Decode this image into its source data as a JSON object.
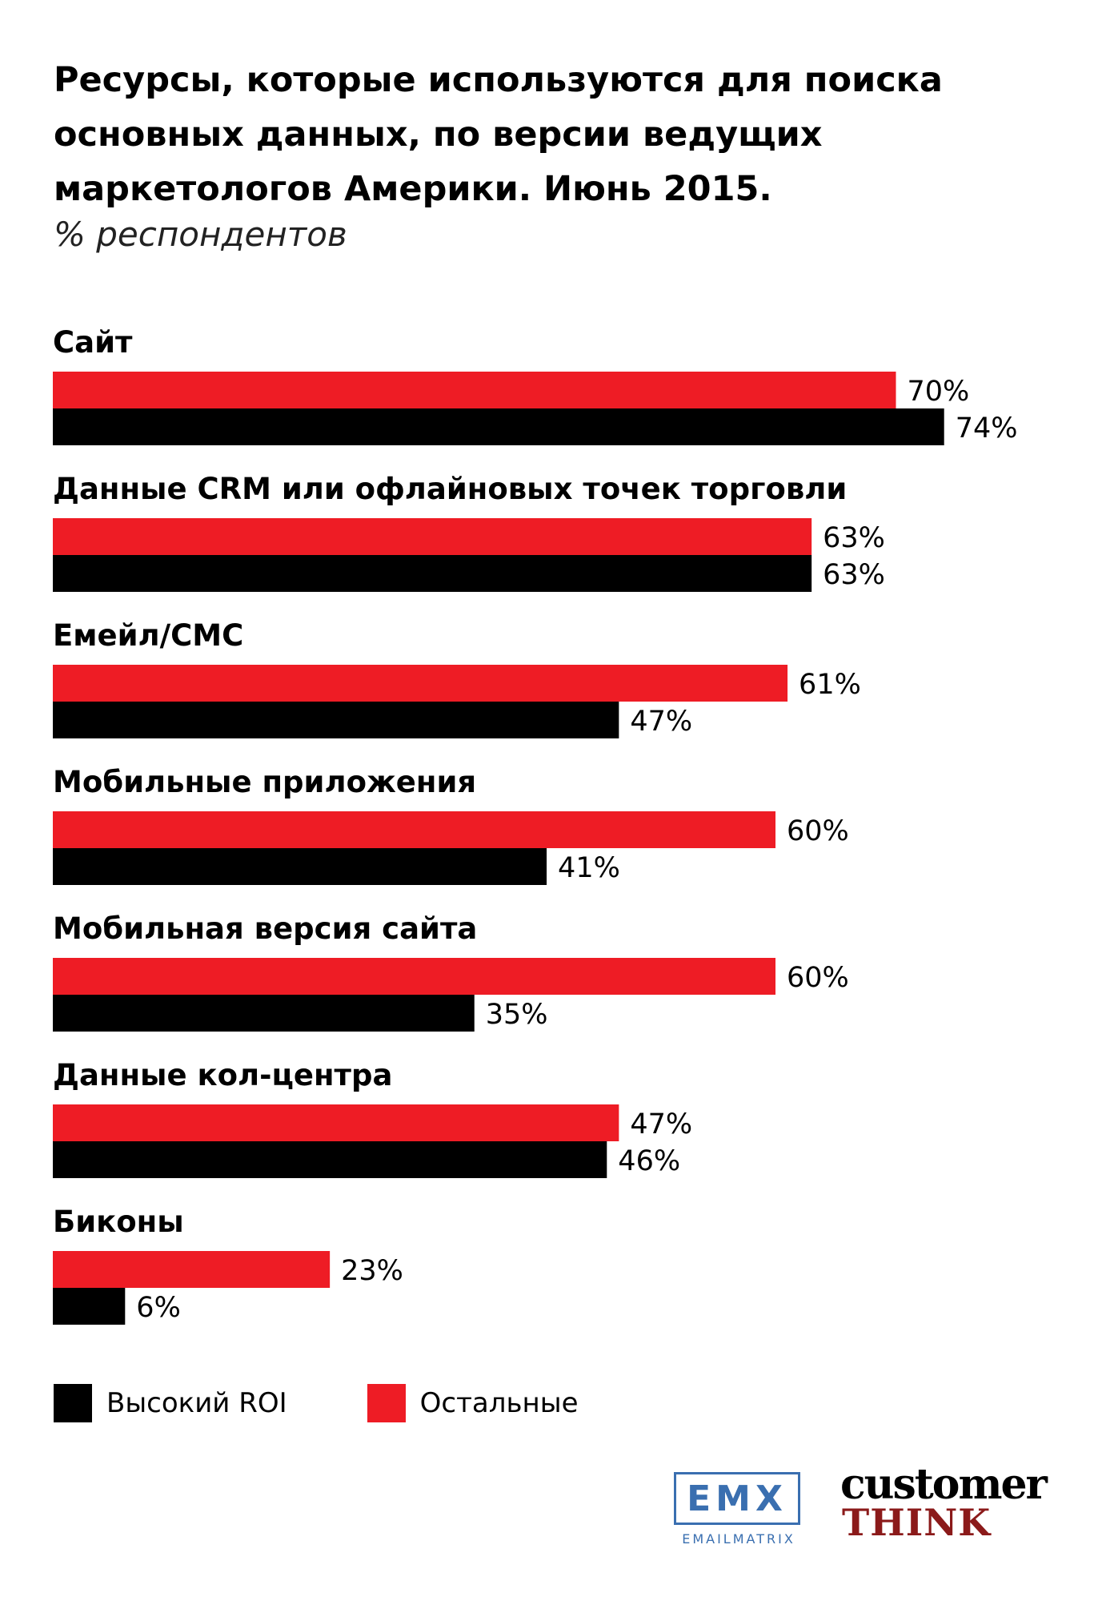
{
  "header": {
    "title": "Ресурсы, которые используются для поиска основных данных, по версии ведущих маркетологов Америки. Июнь 2015.",
    "subtitle": "% респондентов"
  },
  "chart_data": {
    "type": "bar",
    "orientation": "horizontal",
    "title": "Ресурсы, которые используются для поиска основных данных, по версии ведущих маркетологов Америки. Июнь 2015.",
    "subtitle": "% респондентов",
    "categories": [
      "Сайт",
      "Данные CRM или офлайновых точек торговли",
      "Емейл/СМС",
      "Мобильные приложения",
      "Мобильная версия сайта",
      "Данные кол-центра",
      "Биконы"
    ],
    "series": [
      {
        "name": "Остальные",
        "color": "#ee1c25",
        "values": [
          70,
          63,
          61,
          60,
          60,
          47,
          23
        ]
      },
      {
        "name": "Высокий ROI",
        "color": "#000000",
        "values": [
          74,
          63,
          47,
          41,
          35,
          46,
          6
        ]
      }
    ],
    "value_suffix": "%",
    "xlim": [
      0,
      100
    ],
    "grid": false,
    "legend_position": "bottom-left"
  },
  "legend": {
    "items": [
      {
        "label": "Высокий ROI",
        "color": "#000000"
      },
      {
        "label": "Остальные",
        "color": "#ee1c25"
      }
    ]
  },
  "logos": {
    "emx": "EMX",
    "emx_sub": "EMAILMATRIX",
    "customer": "customer",
    "think": "THINK"
  }
}
